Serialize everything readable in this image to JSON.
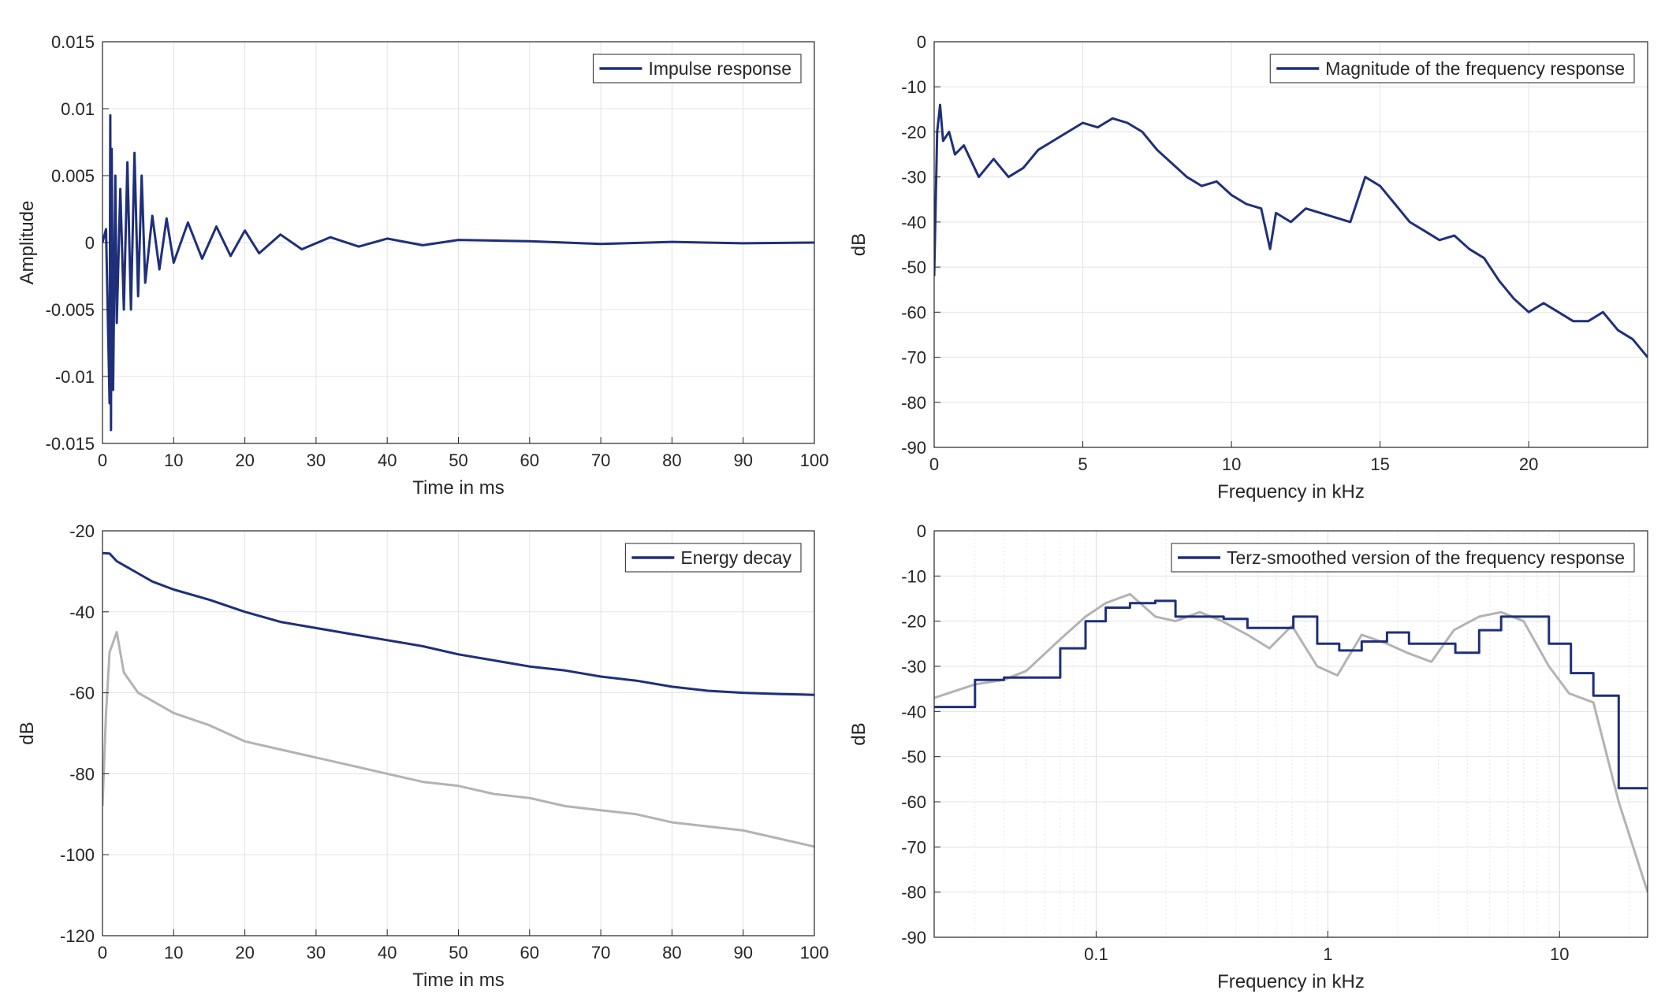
{
  "chart_data": [
    {
      "type": "line",
      "xlabel": "Time in ms",
      "ylabel": "Amplitude",
      "xlim": [
        0,
        100
      ],
      "ylim": [
        -0.015,
        0.015
      ],
      "xticks": [
        0,
        10,
        20,
        30,
        40,
        50,
        60,
        70,
        80,
        90,
        100
      ],
      "xtick_labels": [
        "0",
        "10",
        "20",
        "30",
        "40",
        "50",
        "60",
        "70",
        "80",
        "90",
        "100"
      ],
      "yticks": [
        0.015,
        0.01,
        0.005,
        0,
        -0.005,
        -0.01,
        -0.015
      ],
      "ytick_labels": [
        "0.015",
        "0.01",
        "0.005",
        "0",
        "-0.005",
        "-0.01",
        "-0.015"
      ],
      "xscale": "linear",
      "grid": true,
      "legend_position": "top-right",
      "series": [
        {
          "name": "Impulse response",
          "color": "#1f2f7a",
          "x": [
            0,
            0.5,
            1,
            1.1,
            1.2,
            1.3,
            1.5,
            1.8,
            2,
            2.5,
            3,
            3.5,
            4,
            4.5,
            5,
            5.5,
            6,
            7,
            8,
            9,
            10,
            12,
            14,
            16,
            18,
            20,
            22,
            25,
            28,
            32,
            36,
            40,
            45,
            50,
            60,
            70,
            80,
            90,
            100
          ],
          "values": [
            0,
            0.001,
            -0.012,
            0.0095,
            -0.014,
            0.007,
            -0.011,
            0.005,
            -0.006,
            0.004,
            -0.005,
            0.006,
            -0.005,
            0.0067,
            -0.004,
            0.005,
            -0.003,
            0.002,
            -0.002,
            0.0018,
            -0.0015,
            0.0015,
            -0.0012,
            0.0012,
            -0.001,
            0.0009,
            -0.0008,
            0.0006,
            -0.0005,
            0.0004,
            -0.0003,
            0.0003,
            -0.0002,
            0.0002,
            0.0001,
            -0.0001,
            5e-05,
            -5e-05,
            0
          ]
        }
      ]
    },
    {
      "type": "line",
      "xlabel": "Frequency in kHz",
      "ylabel": "dB",
      "xlim": [
        0,
        24
      ],
      "ylim": [
        -90,
        0
      ],
      "xticks": [
        0,
        5,
        10,
        15,
        20
      ],
      "xtick_labels": [
        "0",
        "5",
        "10",
        "15",
        "20"
      ],
      "yticks": [
        0,
        -10,
        -20,
        -30,
        -40,
        -50,
        -60,
        -70,
        -80,
        -90
      ],
      "ytick_labels": [
        "0",
        "-10",
        "-20",
        "-30",
        "-40",
        "-50",
        "-60",
        "-70",
        "-80",
        "-90"
      ],
      "xscale": "linear",
      "grid": true,
      "legend_position": "top-right",
      "series": [
        {
          "name": "Magnitude of the frequency response",
          "color": "#1f2f7a",
          "x": [
            0,
            0.1,
            0.2,
            0.3,
            0.5,
            0.7,
            1,
            1.5,
            2,
            2.5,
            3,
            3.5,
            4,
            4.5,
            5,
            5.5,
            6,
            6.5,
            7,
            7.5,
            8,
            8.5,
            9,
            9.5,
            10,
            10.5,
            11,
            11.3,
            11.5,
            12,
            12.5,
            13,
            13.5,
            14,
            14.5,
            15,
            15.5,
            16,
            16.5,
            17,
            17.5,
            18,
            18.5,
            19,
            19.5,
            20,
            20.5,
            21,
            21.5,
            22,
            22.5,
            23,
            23.5,
            24
          ],
          "values": [
            -52,
            -20,
            -14,
            -22,
            -20,
            -25,
            -23,
            -30,
            -26,
            -30,
            -28,
            -24,
            -22,
            -20,
            -18,
            -19,
            -17,
            -18,
            -20,
            -24,
            -27,
            -30,
            -32,
            -31,
            -34,
            -36,
            -37,
            -46,
            -38,
            -40,
            -37,
            -38,
            -39,
            -40,
            -30,
            -32,
            -36,
            -40,
            -42,
            -44,
            -43,
            -46,
            -48,
            -53,
            -57,
            -60,
            -58,
            -60,
            -62,
            -62,
            -60,
            -64,
            -66,
            -70
          ]
        }
      ]
    },
    {
      "type": "line",
      "xlabel": "Time in ms",
      "ylabel": "dB",
      "xlim": [
        0,
        100
      ],
      "ylim": [
        -120,
        -20
      ],
      "xticks": [
        0,
        10,
        20,
        30,
        40,
        50,
        60,
        70,
        80,
        90,
        100
      ],
      "xtick_labels": [
        "0",
        "10",
        "20",
        "30",
        "40",
        "50",
        "60",
        "70",
        "80",
        "90",
        "100"
      ],
      "yticks": [
        -20,
        -40,
        -60,
        -80,
        -100,
        -120
      ],
      "ytick_labels": [
        "-20",
        "-40",
        "-60",
        "-80",
        "-100",
        "-120"
      ],
      "xscale": "linear",
      "grid": true,
      "legend_position": "top-right",
      "series": [
        {
          "name": "Energy decay",
          "color": "#1f2f7a",
          "x": [
            0,
            1,
            2,
            3,
            5,
            7,
            10,
            15,
            20,
            25,
            30,
            35,
            40,
            45,
            50,
            55,
            60,
            65,
            70,
            75,
            80,
            85,
            90,
            95,
            100
          ],
          "values": [
            -25.5,
            -25.6,
            -27.5,
            -28.5,
            -30.5,
            -32.5,
            -34.5,
            -37,
            -40,
            -42.5,
            -44,
            -45.5,
            -47,
            -48.5,
            -50.5,
            -52,
            -53.5,
            -54.5,
            -56,
            -57,
            -58.5,
            -59.5,
            -60,
            -60.3,
            -60.5
          ]
        },
        {
          "color": "#b3b3b3",
          "x": [
            0,
            0.5,
            1,
            2,
            3,
            5,
            8,
            10,
            15,
            20,
            25,
            30,
            35,
            40,
            45,
            50,
            55,
            60,
            65,
            70,
            75,
            80,
            85,
            90,
            95,
            100
          ],
          "values": [
            -88,
            -65,
            -50,
            -45,
            -55,
            -60,
            -63,
            -65,
            -68,
            -72,
            -74,
            -76,
            -78,
            -80,
            -82,
            -83,
            -85,
            -86,
            -88,
            -89,
            -90,
            -92,
            -93,
            -94,
            -96,
            -98
          ]
        }
      ]
    },
    {
      "type": "line",
      "xlabel": "Frequency in kHz",
      "ylabel": "dB",
      "xlim": [
        0.02,
        24
      ],
      "ylim": [
        -90,
        0
      ],
      "xticks": [
        0.1,
        1,
        10
      ],
      "xtick_labels": [
        "0.1",
        "1",
        "10"
      ],
      "yticks": [
        0,
        -10,
        -20,
        -30,
        -40,
        -50,
        -60,
        -70,
        -80,
        -90
      ],
      "ytick_labels": [
        "0",
        "-10",
        "-20",
        "-30",
        "-40",
        "-50",
        "-60",
        "-70",
        "-80",
        "-90"
      ],
      "xscale": "log",
      "grid": true,
      "legend_position": "top-right",
      "series": [
        {
          "name": "Terz-smoothed version of the frequency response",
          "color": "#1f2f7a",
          "step": true,
          "x": [
            0.02,
            0.03,
            0.04,
            0.055,
            0.07,
            0.09,
            0.11,
            0.14,
            0.18,
            0.22,
            0.28,
            0.355,
            0.45,
            0.56,
            0.71,
            0.9,
            1.12,
            1.4,
            1.8,
            2.24,
            2.8,
            3.55,
            4.5,
            5.6,
            7.1,
            9,
            11.2,
            14,
            18,
            24
          ],
          "values": [
            -39,
            -33,
            -32.5,
            -32.5,
            -26,
            -20,
            -17,
            -16,
            -15.5,
            -19,
            -19,
            -19.5,
            -21.5,
            -21.5,
            -19,
            -25,
            -26.5,
            -24.5,
            -22.5,
            -25,
            -25,
            -27,
            -22,
            -19,
            -19,
            -25,
            -31.5,
            -36.5,
            -57,
            -57
          ]
        },
        {
          "color": "#b3b3b3",
          "x": [
            0.02,
            0.03,
            0.04,
            0.05,
            0.07,
            0.09,
            0.11,
            0.14,
            0.18,
            0.22,
            0.28,
            0.35,
            0.45,
            0.56,
            0.7,
            0.9,
            1.1,
            1.4,
            1.8,
            2.2,
            2.8,
            3.5,
            4.5,
            5.6,
            7,
            9,
            11,
            14,
            18,
            24
          ],
          "values": [
            -37,
            -34,
            -33,
            -31,
            -24,
            -19,
            -16,
            -14,
            -19,
            -20,
            -18,
            -20,
            -23,
            -26,
            -21,
            -30,
            -32,
            -23,
            -25,
            -27,
            -29,
            -22,
            -19,
            -18,
            -20,
            -30,
            -36,
            -38,
            -60,
            -80
          ]
        }
      ]
    }
  ]
}
